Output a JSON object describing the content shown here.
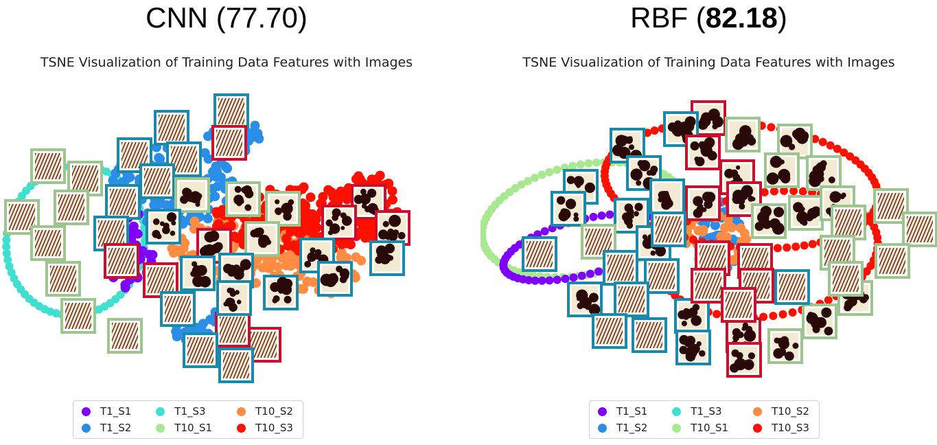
{
  "chart_data": [
    {
      "type": "scatter",
      "panel_title": "CNN (77.70)",
      "title": "TSNE Visualization of Training Data Features with Images",
      "grid": false,
      "axes_visible": false,
      "legend_position": "bottom-center",
      "legend": [
        {
          "name": "T1_S1",
          "color": "#7f00ff"
        },
        {
          "name": "T1_S3",
          "color": "#40e0d0"
        },
        {
          "name": "T10_S2",
          "color": "#ff8c42"
        },
        {
          "name": "T1_S2",
          "color": "#2a8de8"
        },
        {
          "name": "T10_S1",
          "color": "#a8e890"
        },
        {
          "name": "T10_S3",
          "color": "#ff1000"
        }
      ]
    },
    {
      "type": "scatter",
      "panel_title_plain_a": "RBF (",
      "panel_title_bold": "82.18",
      "panel_title_plain_b": ")",
      "title": "TSNE Visualization of Training Data Features with Images",
      "grid": false,
      "axes_visible": false,
      "legend_position": "bottom-center",
      "legend": [
        {
          "name": "T1_S1",
          "color": "#7f00ff"
        },
        {
          "name": "T1_S3",
          "color": "#40e0d0"
        },
        {
          "name": "T10_S2",
          "color": "#ff8c42"
        },
        {
          "name": "T1_S2",
          "color": "#2a8de8"
        },
        {
          "name": "T10_S1",
          "color": "#a8e890"
        },
        {
          "name": "T10_S3",
          "color": "#ff1000"
        }
      ]
    }
  ],
  "thumbnail_frames": {
    "blue": "#1a8aa8",
    "green": "#9ec490",
    "red": "#c8102e"
  },
  "thumbnail_kinds": [
    "striped-texture",
    "blob-texture"
  ]
}
